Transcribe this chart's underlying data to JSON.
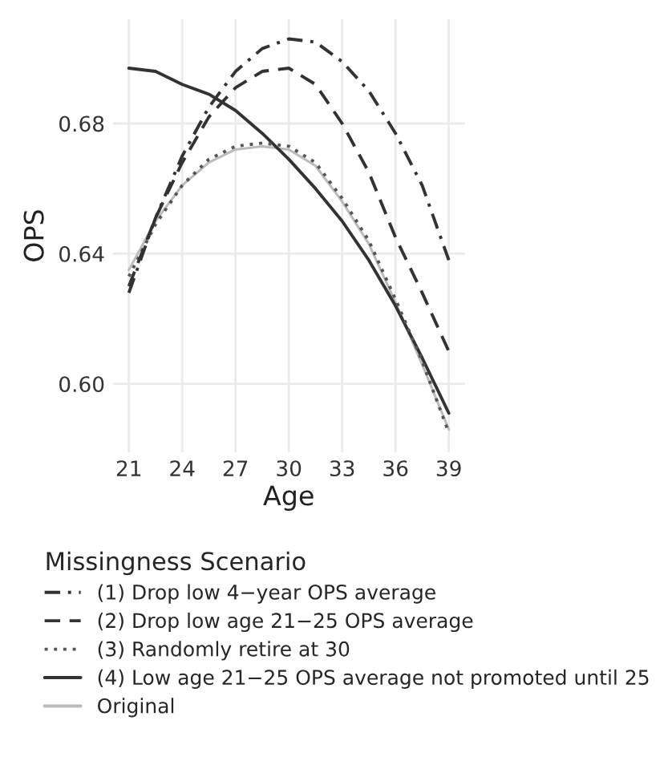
{
  "chart_data": {
    "type": "line",
    "xlabel": "Age",
    "ylabel": "OPS",
    "legend_title": "Missingness Scenario",
    "legend": "bottom",
    "grid": true,
    "x": [
      21,
      22.5,
      24,
      25.5,
      27,
      28.5,
      30,
      31.5,
      33,
      34.5,
      36,
      37.5,
      39
    ],
    "xlim": [
      20.1,
      39.9
    ],
    "xticks": [
      21,
      24,
      27,
      30,
      33,
      36,
      39
    ],
    "ylim": [
      0.579,
      0.712
    ],
    "yticks": [
      {
        "value": 0.6,
        "label": "0.60"
      },
      {
        "value": 0.64,
        "label": "0.64"
      },
      {
        "value": 0.68,
        "label": "0.68"
      }
    ],
    "series": [
      {
        "name": "(1) Drop low 4−year OPS average",
        "color": "#333333",
        "line_style": "dashdot",
        "values": [
          0.628,
          0.651,
          0.67,
          0.685,
          0.696,
          0.703,
          0.706,
          0.705,
          0.699,
          0.69,
          0.677,
          0.661,
          0.638
        ]
      },
      {
        "name": "(2) Drop low age 21−25 OPS average",
        "color": "#333333",
        "line_style": "dashed",
        "values": [
          0.63,
          0.651,
          0.668,
          0.682,
          0.691,
          0.696,
          0.697,
          0.692,
          0.68,
          0.665,
          0.645,
          0.628,
          0.61
        ]
      },
      {
        "name": "(3) Randomly retire at 30",
        "color": "#555555",
        "line_style": "dotted",
        "values": [
          0.633,
          0.649,
          0.661,
          0.669,
          0.673,
          0.674,
          0.673,
          0.668,
          0.657,
          0.644,
          0.626,
          0.607,
          0.585
        ]
      },
      {
        "name": "(4) Low age 21−25 OPS average not promoted until 25",
        "color": "#333333",
        "line_style": "solid",
        "values": [
          0.697,
          0.696,
          0.692,
          0.689,
          0.684,
          0.677,
          0.669,
          0.66,
          0.65,
          0.638,
          0.624,
          0.608,
          0.591
        ]
      },
      {
        "name": "Original",
        "color": "#bbbbbb",
        "line_style": "solid",
        "values": [
          0.635,
          0.65,
          0.661,
          0.668,
          0.672,
          0.673,
          0.672,
          0.667,
          0.656,
          0.643,
          0.625,
          0.606,
          0.586
        ]
      }
    ]
  }
}
